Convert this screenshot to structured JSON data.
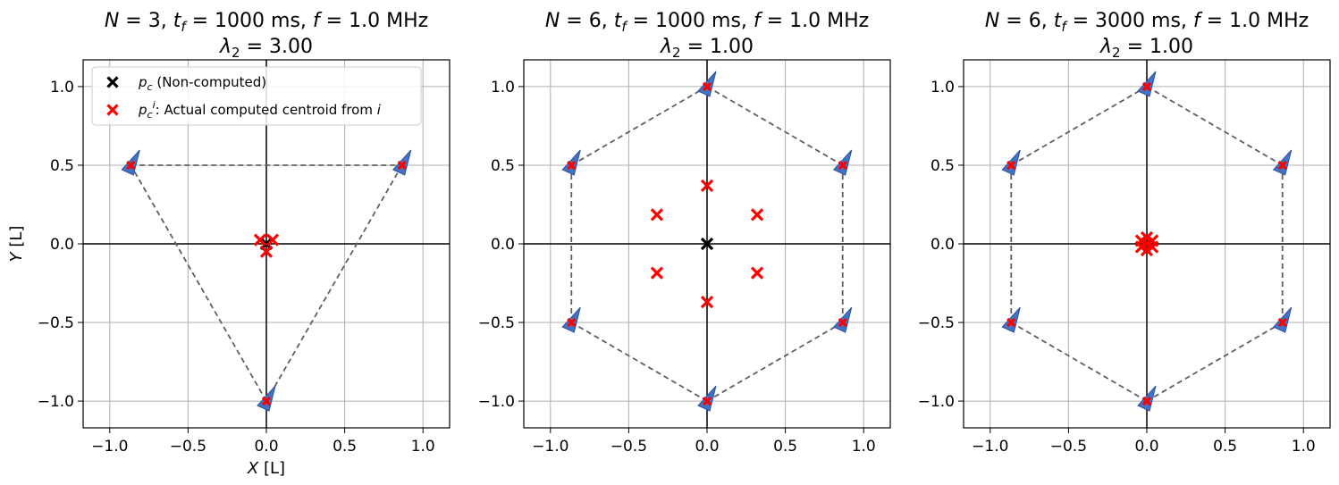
{
  "colors": {
    "agent_fill": "#4472c4",
    "agent_edge": "#2c4f9e",
    "actual_centroid": "#ff0000",
    "true_centroid": "#000000",
    "formation_line": "#606060",
    "grid": "#b0b0b0"
  },
  "legend": {
    "true_centroid": {
      "symbol": "p",
      "subscript": "c",
      "rest": " (Non-computed)"
    },
    "actual_centroid": {
      "symbol": "p",
      "subscript": "c",
      "superscript": "i",
      "rest": ": Actual computed centroid from ",
      "tail": "i"
    }
  },
  "chart_data": [
    {
      "type": "scatter",
      "title_line1": {
        "N": "3",
        "tf": "1000",
        "f": "1.0"
      },
      "title_line2": {
        "lambda2": "3.00"
      },
      "xlabel": "X [L]",
      "ylabel": "Y [L]",
      "xlim": [
        -1.17,
        1.17
      ],
      "ylim": [
        -1.17,
        1.17
      ],
      "xticks": [
        "−1.0",
        "−0.5",
        "0.0",
        "0.5",
        "1.0"
      ],
      "yticks": [
        "1.0",
        "0.5",
        "0.0",
        "−0.5",
        "−1.0"
      ],
      "grid": true,
      "legend_position": "upper-left",
      "agents": [
        [
          -0.866,
          0.5
        ],
        [
          0.866,
          0.5
        ],
        [
          0.0,
          -1.0
        ]
      ],
      "formation_edges": [
        [
          0,
          1
        ],
        [
          1,
          2
        ],
        [
          2,
          0
        ]
      ],
      "true_centroid": [
        0.0,
        0.0
      ],
      "computed_centroids": [
        [
          -0.04,
          0.025
        ],
        [
          0.04,
          0.025
        ],
        [
          0.0,
          -0.05
        ]
      ]
    },
    {
      "type": "scatter",
      "title_line1": {
        "N": "6",
        "tf": "1000",
        "f": "1.0"
      },
      "title_line2": {
        "lambda2": "1.00"
      },
      "xlabel": "",
      "ylabel": "",
      "xlim": [
        -1.17,
        1.17
      ],
      "ylim": [
        -1.17,
        1.17
      ],
      "xticks": [
        "−1.0",
        "−0.5",
        "0.0",
        "0.5",
        "1.0"
      ],
      "yticks": [
        "1.0",
        "0.5",
        "0.0",
        "−0.5",
        "−1.0"
      ],
      "grid": true,
      "agents": [
        [
          0.0,
          1.0
        ],
        [
          0.866,
          0.5
        ],
        [
          0.866,
          -0.5
        ],
        [
          0.0,
          -1.0
        ],
        [
          -0.866,
          -0.5
        ],
        [
          -0.866,
          0.5
        ]
      ],
      "formation_edges": [
        [
          0,
          1
        ],
        [
          1,
          2
        ],
        [
          2,
          3
        ],
        [
          3,
          4
        ],
        [
          4,
          5
        ],
        [
          5,
          0
        ]
      ],
      "true_centroid": [
        0.0,
        0.0
      ],
      "computed_centroids": [
        [
          0.0,
          0.37
        ],
        [
          0.32,
          0.185
        ],
        [
          0.32,
          -0.185
        ],
        [
          0.0,
          -0.37
        ],
        [
          -0.32,
          -0.185
        ],
        [
          -0.32,
          0.185
        ]
      ]
    },
    {
      "type": "scatter",
      "title_line1": {
        "N": "6",
        "tf": "3000",
        "f": "1.0"
      },
      "title_line2": {
        "lambda2": "1.00"
      },
      "xlabel": "",
      "ylabel": "",
      "xlim": [
        -1.17,
        1.17
      ],
      "ylim": [
        -1.17,
        1.17
      ],
      "xticks": [
        "−1.0",
        "−0.5",
        "0.0",
        "0.5",
        "1.0"
      ],
      "yticks": [
        "1.0",
        "0.5",
        "0.0",
        "−0.5",
        "−1.0"
      ],
      "grid": true,
      "agents": [
        [
          0.0,
          1.0
        ],
        [
          0.866,
          0.5
        ],
        [
          0.866,
          -0.5
        ],
        [
          0.0,
          -1.0
        ],
        [
          -0.866,
          -0.5
        ],
        [
          -0.866,
          0.5
        ]
      ],
      "formation_edges": [
        [
          0,
          1
        ],
        [
          1,
          2
        ],
        [
          2,
          3
        ],
        [
          3,
          4
        ],
        [
          4,
          5
        ],
        [
          5,
          0
        ]
      ],
      "true_centroid": [
        0.0,
        0.0
      ],
      "computed_centroids": [
        [
          0.0,
          0.04
        ],
        [
          0.035,
          0.02
        ],
        [
          0.035,
          -0.02
        ],
        [
          0.0,
          -0.04
        ],
        [
          -0.035,
          -0.02
        ],
        [
          -0.035,
          0.02
        ]
      ]
    }
  ]
}
